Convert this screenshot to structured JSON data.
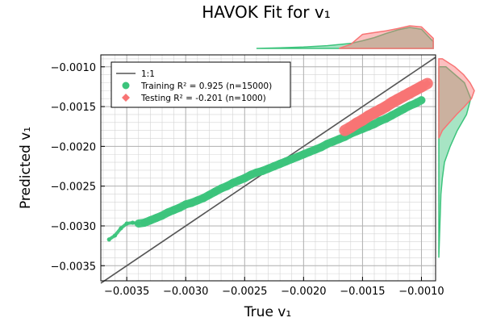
{
  "chart_data": {
    "type": "scatter",
    "title": "HAVOK Fit for v₁",
    "xlabel": "True v₁",
    "ylabel": "Predicted v₁",
    "xlim": [
      -0.00372,
      -0.00088
    ],
    "ylim": [
      -0.00369,
      -0.00085
    ],
    "x_ticks": [
      -0.0035,
      -0.003,
      -0.0025,
      -0.002,
      -0.0015,
      -0.001
    ],
    "x_tick_labels": [
      "−0.0035",
      "−0.0030",
      "−0.0025",
      "−0.0020",
      "−0.0015",
      "−0.0010"
    ],
    "y_ticks": [
      -0.0035,
      -0.003,
      -0.0025,
      -0.002,
      -0.0015,
      -0.001
    ],
    "y_tick_labels": [
      "−0.0035",
      "−0.0030",
      "−0.0025",
      "−0.0020",
      "−0.0015",
      "−0.0010"
    ],
    "grid": true,
    "minor_grid": true,
    "legend_position": "top-left",
    "legend": [
      {
        "kind": "line",
        "label": "1:1",
        "color": "#555555"
      },
      {
        "kind": "circle",
        "label": "Training R² = 0.925 (n=15000)",
        "color": "#3cc47c"
      },
      {
        "kind": "diamond",
        "label": "Testing   R² = -0.201 (n=1000)",
        "color": "#f87474"
      }
    ],
    "reference_line": {
      "name": "1:1",
      "x": [
        -0.00372,
        -0.00088
      ],
      "y": [
        -0.00372,
        -0.00088
      ]
    },
    "series": [
      {
        "name": "Training",
        "marker": "circle",
        "color": "#3cc47c",
        "n": 15000,
        "r2": 0.925,
        "x": [
          -0.00365,
          -0.0036,
          -0.00355,
          -0.0035,
          -0.00345,
          -0.0034,
          -0.00335,
          -0.0033,
          -0.00325,
          -0.0032,
          -0.00315,
          -0.0031,
          -0.00305,
          -0.003,
          -0.00295,
          -0.0029,
          -0.00285,
          -0.0028,
          -0.00275,
          -0.0027,
          -0.00265,
          -0.0026,
          -0.00255,
          -0.0025,
          -0.00245,
          -0.0024,
          -0.00235,
          -0.0023,
          -0.00225,
          -0.0022,
          -0.00215,
          -0.0021,
          -0.00205,
          -0.002,
          -0.00195,
          -0.0019,
          -0.00185,
          -0.0018,
          -0.00175,
          -0.0017,
          -0.00165,
          -0.0016,
          -0.00155,
          -0.0015,
          -0.00145,
          -0.0014,
          -0.00135,
          -0.0013,
          -0.00125,
          -0.0012,
          -0.00115,
          -0.0011,
          -0.00105,
          -0.001
        ],
        "y": [
          -0.00317,
          -0.00312,
          -0.00303,
          -0.00297,
          -0.00296,
          -0.00297,
          -0.00296,
          -0.00293,
          -0.0029,
          -0.00287,
          -0.00283,
          -0.0028,
          -0.00277,
          -0.00273,
          -0.00271,
          -0.00268,
          -0.00265,
          -0.00261,
          -0.00257,
          -0.00253,
          -0.0025,
          -0.00246,
          -0.00243,
          -0.0024,
          -0.00236,
          -0.00233,
          -0.00231,
          -0.00228,
          -0.00225,
          -0.00222,
          -0.00219,
          -0.00216,
          -0.00213,
          -0.0021,
          -0.00207,
          -0.00204,
          -0.00201,
          -0.00197,
          -0.00194,
          -0.00191,
          -0.00188,
          -0.00184,
          -0.00181,
          -0.00178,
          -0.00175,
          -0.00172,
          -0.00168,
          -0.00165,
          -0.00161,
          -0.00157,
          -0.00153,
          -0.00149,
          -0.00146,
          -0.00142
        ]
      },
      {
        "name": "Testing",
        "marker": "diamond",
        "color": "#f87474",
        "n": 1000,
        "r2": -0.201,
        "x": [
          -0.00165,
          -0.0016,
          -0.00155,
          -0.0015,
          -0.00145,
          -0.0014,
          -0.00135,
          -0.0013,
          -0.00125,
          -0.0012,
          -0.00115,
          -0.0011,
          -0.00105,
          -0.001,
          -0.00095
        ],
        "y": [
          -0.0018,
          -0.00176,
          -0.00171,
          -0.00167,
          -0.00162,
          -0.00158,
          -0.00154,
          -0.0015,
          -0.00145,
          -0.00141,
          -0.00137,
          -0.00133,
          -0.00129,
          -0.00125,
          -0.00121
        ]
      }
    ],
    "marginals": [
      {
        "axis": "x",
        "series": "Training",
        "x": [
          -0.0024,
          -0.0022,
          -0.002,
          -0.0018,
          -0.0016,
          -0.0015,
          -0.0014,
          -0.0013,
          -0.0012,
          -0.0011,
          -0.001,
          -0.0009
        ],
        "density": [
          0.0,
          0.03,
          0.06,
          0.12,
          0.22,
          0.34,
          0.48,
          0.66,
          0.82,
          0.93,
          0.85,
          0.3
        ]
      },
      {
        "axis": "x",
        "series": "Testing",
        "x": [
          -0.0017,
          -0.0016,
          -0.0015,
          -0.0014,
          -0.0013,
          -0.0012,
          -0.0011,
          -0.001,
          -0.0009
        ],
        "density": [
          0.0,
          0.18,
          0.62,
          0.7,
          0.78,
          0.88,
          1.0,
          0.95,
          0.45
        ]
      },
      {
        "axis": "y",
        "series": "Training",
        "y": [
          -0.0034,
          -0.003,
          -0.0026,
          -0.0024,
          -0.0022,
          -0.002,
          -0.0018,
          -0.0016,
          -0.0014,
          -0.0012,
          -0.001
        ],
        "density": [
          0.0,
          0.03,
          0.06,
          0.1,
          0.16,
          0.32,
          0.52,
          0.78,
          0.9,
          0.72,
          0.2
        ]
      },
      {
        "axis": "y",
        "series": "Testing",
        "y": [
          -0.0019,
          -0.0018,
          -0.0017,
          -0.0016,
          -0.0015,
          -0.0014,
          -0.0013,
          -0.0012,
          -0.0011,
          -0.001,
          -0.0009
        ],
        "density": [
          0.0,
          0.1,
          0.3,
          0.5,
          0.72,
          0.92,
          1.0,
          0.88,
          0.7,
          0.45,
          0.1
        ]
      }
    ]
  }
}
